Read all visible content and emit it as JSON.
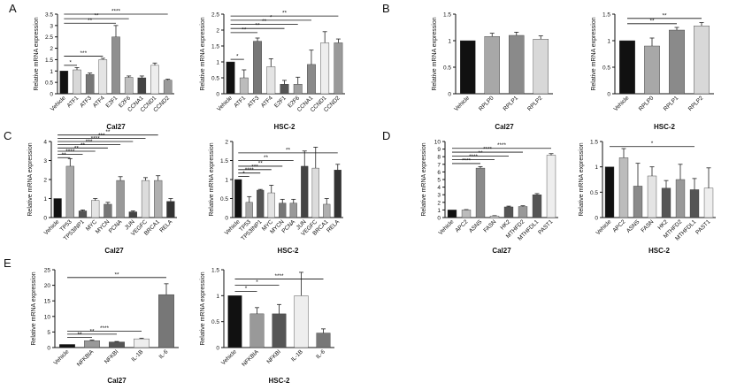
{
  "chart_data": [
    {
      "panel": "A",
      "title": "Cal27",
      "type": "bar",
      "ylabel": "Relative mRNA expression",
      "ylim": [
        0,
        3.5
      ],
      "yticks": [
        0,
        0.5,
        1,
        1.5,
        2,
        2.5,
        3,
        3.5
      ],
      "categories": [
        "Vehicle",
        "ATF1",
        "ATF3",
        "ATF4",
        "E2F1",
        "E2F6",
        "CCNA1",
        "CCND1",
        "CCND2"
      ],
      "values": [
        1.0,
        1.05,
        0.85,
        1.5,
        2.5,
        0.72,
        0.7,
        1.25,
        0.6
      ],
      "errors": [
        0,
        0.1,
        0.06,
        0.06,
        0.5,
        0.06,
        0.08,
        0.1,
        0.04
      ],
      "colors": [
        "#111111",
        "#d8d8d8",
        "#777777",
        "#e4e4e4",
        "#8f8f8f",
        "#bfbfbf",
        "#444444",
        "#eeeeee",
        "#9a9a9a"
      ],
      "significance": [
        {
          "from": 0,
          "to": 1,
          "label": "*",
          "y": 1.25
        },
        {
          "from": 0,
          "to": 3,
          "label": "***",
          "y": 1.65
        },
        {
          "from": 0,
          "to": 4,
          "label": "**",
          "y": 3.1
        },
        {
          "from": 0,
          "to": 5,
          "label": "**",
          "y": 3.3
        },
        {
          "from": 0,
          "to": 8,
          "label": "****",
          "y": 3.5
        }
      ]
    },
    {
      "panel": "A2",
      "title": "HSC-2",
      "type": "bar",
      "ylabel": "Relative mRNA expression",
      "ylim": [
        0,
        2.5
      ],
      "yticks": [
        0,
        0.5,
        1,
        1.5,
        2,
        2.5
      ],
      "categories": [
        "Vehicle",
        "ATF1",
        "ATF3",
        "ATF4",
        "E2F1",
        "E2F6",
        "CCNA1",
        "CCND1",
        "CCND2"
      ],
      "values": [
        1.0,
        0.5,
        1.65,
        0.85,
        0.3,
        0.3,
        0.92,
        1.6,
        1.6
      ],
      "errors": [
        0,
        0.25,
        0.1,
        0.25,
        0.12,
        0.22,
        0.45,
        0.35,
        0.12
      ],
      "colors": [
        "#111111",
        "#bcbcbc",
        "#777777",
        "#e4e4e4",
        "#555555",
        "#a0a0a0",
        "#8a8a8a",
        "#eeeeee",
        "#9a9a9a"
      ],
      "significance": [
        {
          "from": 0,
          "to": 1,
          "label": "*",
          "y": 1.08
        },
        {
          "from": 0,
          "to": 2,
          "label": "**",
          "y": 1.92
        },
        {
          "from": 0,
          "to": 4,
          "label": "**",
          "y": 2.05
        },
        {
          "from": 0,
          "to": 5,
          "label": "**",
          "y": 2.18
        },
        {
          "from": 0,
          "to": 6,
          "label": "*",
          "y": 2.31
        },
        {
          "from": 0,
          "to": 8,
          "label": "**",
          "y": 2.44
        }
      ]
    },
    {
      "panel": "B",
      "title": "Cal27",
      "type": "bar",
      "ylabel": "Relative mRNA expression",
      "ylim": [
        0,
        1.5
      ],
      "yticks": [
        0,
        0.5,
        1,
        1.5
      ],
      "categories": [
        "Vehicle",
        "RPLP0",
        "RPLP1",
        "RPLP2"
      ],
      "values": [
        1.0,
        1.08,
        1.1,
        1.03
      ],
      "errors": [
        0,
        0.06,
        0.06,
        0.06
      ],
      "colors": [
        "#111111",
        "#a8a8a8",
        "#8a8a8a",
        "#d8d8d8"
      ],
      "significance": []
    },
    {
      "panel": "B2",
      "title": "HSC-2",
      "type": "bar",
      "ylabel": "Relative mRNA expression",
      "ylim": [
        0,
        1.5
      ],
      "yticks": [
        0,
        0.5,
        1,
        1.5
      ],
      "categories": [
        "Vehicle",
        "RPLP0",
        "RPLP1",
        "RPLP2"
      ],
      "values": [
        1.0,
        0.9,
        1.2,
        1.28
      ],
      "errors": [
        0,
        0.15,
        0.05,
        0.06
      ],
      "colors": [
        "#111111",
        "#a8a8a8",
        "#8a8a8a",
        "#d8d8d8"
      ],
      "significance": [
        {
          "from": 0,
          "to": 2,
          "label": "**",
          "y": 1.32
        },
        {
          "from": 0,
          "to": 3,
          "label": "**",
          "y": 1.42
        }
      ]
    },
    {
      "panel": "C",
      "title": "Cal27",
      "type": "bar",
      "ylabel": "Relative mRNA expression",
      "ylim": [
        0,
        4
      ],
      "yticks": [
        0,
        1,
        2,
        3,
        4
      ],
      "categories": [
        "Vehicle",
        "TP53",
        "TP53INP1",
        "MYC",
        "MYCN",
        "PCNA",
        "JUN",
        "VEGFC",
        "BRCA1",
        "RELA"
      ],
      "values": [
        1.0,
        2.7,
        0.35,
        0.9,
        0.7,
        1.95,
        0.3,
        1.95,
        1.95,
        0.85
      ],
      "errors": [
        0,
        0.4,
        0.05,
        0.1,
        0.1,
        0.2,
        0.05,
        0.15,
        0.25,
        0.15
      ],
      "colors": [
        "#111111",
        "#a8a8a8",
        "#555555",
        "#e4e4e4",
        "#777777",
        "#999999",
        "#444444",
        "#dcdcdc",
        "#b0b0b0",
        "#333333"
      ],
      "significance": [
        {
          "from": 0,
          "to": 1,
          "label": "**",
          "y": 3.15
        },
        {
          "from": 0,
          "to": 2,
          "label": "****",
          "y": 3.32
        },
        {
          "from": 0,
          "to": 3,
          "label": "**",
          "y": 3.49
        },
        {
          "from": 0,
          "to": 4,
          "label": "**",
          "y": 3.66
        },
        {
          "from": 0,
          "to": 5,
          "label": "***",
          "y": 3.83
        },
        {
          "from": 0,
          "to": 6,
          "label": "****",
          "y": 4.0
        },
        {
          "from": 0,
          "to": 7,
          "label": "***",
          "y": 4.17
        },
        {
          "from": 0,
          "to": 8,
          "label": "**",
          "y": 4.34
        }
      ]
    },
    {
      "panel": "C2",
      "title": "HSC-2",
      "type": "bar",
      "ylabel": "Relative mRNA expression",
      "ylim": [
        0,
        2.0
      ],
      "yticks": [
        0,
        0.5,
        1,
        1.5,
        2
      ],
      "categories": [
        "Vehicle",
        "TP53",
        "TP53INP1",
        "MYC",
        "MYCN",
        "PCNA",
        "JUN",
        "VEGFC",
        "BRCA1",
        "RELA"
      ],
      "values": [
        1.0,
        0.4,
        0.72,
        0.65,
        0.38,
        0.38,
        1.35,
        1.3,
        0.35,
        1.25
      ],
      "errors": [
        0,
        0.15,
        0.02,
        0.2,
        0.1,
        0.1,
        0.4,
        0.55,
        0.15,
        0.15
      ],
      "colors": [
        "#111111",
        "#a8a8a8",
        "#555555",
        "#e4e4e4",
        "#777777",
        "#999999",
        "#444444",
        "#dcdcdc",
        "#b0b0b0",
        "#333333"
      ],
      "significance": [
        {
          "from": 0,
          "to": 1,
          "label": "*",
          "y": 1.08
        },
        {
          "from": 0,
          "to": 2,
          "label": "****",
          "y": 1.17
        },
        {
          "from": 0,
          "to": 3,
          "label": "***",
          "y": 1.26
        },
        {
          "from": 0,
          "to": 4,
          "label": "**",
          "y": 1.35
        },
        {
          "from": 0,
          "to": 5,
          "label": "**",
          "y": 1.5
        },
        {
          "from": 0,
          "to": 9,
          "label": "**",
          "y": 1.7
        }
      ]
    },
    {
      "panel": "D",
      "title": "Cal27",
      "type": "bar",
      "ylabel": "Relative mRNA expression",
      "ylim": [
        0,
        10
      ],
      "yticks": [
        0,
        1,
        2,
        3,
        4,
        5,
        6,
        7,
        8,
        9,
        10
      ],
      "categories": [
        "Vehicle",
        "APC2",
        "ASNS",
        "FASN",
        "HK2",
        "MTHFD2",
        "MTHFDL1",
        "PAST1"
      ],
      "values": [
        1.0,
        1.0,
        6.5,
        0.2,
        1.4,
        1.45,
        3.0,
        8.2
      ],
      "errors": [
        0,
        0.05,
        0.2,
        0.05,
        0.1,
        0.1,
        0.15,
        0.2
      ],
      "colors": [
        "#111111",
        "#bcbcbc",
        "#8a8a8a",
        "#e4e4e4",
        "#555555",
        "#999999",
        "#555555",
        "#eeeeee"
      ],
      "significance": [
        {
          "from": 0,
          "to": 2,
          "label": "****",
          "y": 7.1
        },
        {
          "from": 0,
          "to": 3,
          "label": "****",
          "y": 7.6
        },
        {
          "from": 0,
          "to": 4,
          "label": "**",
          "y": 8.1
        },
        {
          "from": 0,
          "to": 5,
          "label": "****",
          "y": 8.6
        },
        {
          "from": 0,
          "to": 7,
          "label": "****",
          "y": 9.1
        }
      ]
    },
    {
      "panel": "D2",
      "title": "HSC-2",
      "type": "bar",
      "ylabel": "Relative mRNA expression",
      "ylim": [
        0,
        1.5
      ],
      "yticks": [
        0,
        0.5,
        1,
        1.5
      ],
      "categories": [
        "Vehicle",
        "APC2",
        "ASNS",
        "FASN",
        "HK2",
        "MTHFD2",
        "MTHFDL1",
        "PAST1"
      ],
      "values": [
        1.0,
        1.18,
        0.62,
        0.82,
        0.58,
        0.75,
        0.55,
        0.58
      ],
      "errors": [
        0,
        0.18,
        0.45,
        0.18,
        0.15,
        0.3,
        0.22,
        0.4
      ],
      "colors": [
        "#111111",
        "#bcbcbc",
        "#8a8a8a",
        "#e4e4e4",
        "#555555",
        "#999999",
        "#555555",
        "#eeeeee"
      ],
      "significance": [
        {
          "from": 0,
          "to": 6,
          "label": "*",
          "y": 1.4
        }
      ]
    },
    {
      "panel": "E",
      "title": "Cal27",
      "type": "bar",
      "ylabel": "Relative mRNA expression",
      "ylim": [
        0,
        25
      ],
      "yticks": [
        0,
        5,
        10,
        15,
        20,
        25
      ],
      "categories": [
        "Vehicle",
        "NFKBIA",
        "NFKBI",
        "IL-1B",
        "IL-6"
      ],
      "values": [
        1.0,
        2.2,
        1.8,
        2.8,
        17.0
      ],
      "errors": [
        0,
        0.2,
        0.15,
        0.2,
        3.5
      ],
      "colors": [
        "#111111",
        "#999999",
        "#555555",
        "#eeeeee",
        "#777777"
      ],
      "significance": [
        {
          "from": 0,
          "to": 1,
          "label": "**",
          "y": 3.3
        },
        {
          "from": 0,
          "to": 2,
          "label": "**",
          "y": 4.3
        },
        {
          "from": 0,
          "to": 3,
          "label": "****",
          "y": 5.3
        },
        {
          "from": 0,
          "to": 4,
          "label": "**",
          "y": 22.5
        }
      ]
    },
    {
      "panel": "E2",
      "title": "HSC-2",
      "type": "bar",
      "ylabel": "Relative mRNA expression",
      "ylim": [
        0,
        1.5
      ],
      "yticks": [
        0,
        0.5,
        1,
        1.5
      ],
      "categories": [
        "Vehicle",
        "NFKBIA",
        "NFKBI",
        "IL-1B",
        "IL-6"
      ],
      "values": [
        1.0,
        0.65,
        0.65,
        1.0,
        0.28
      ],
      "errors": [
        0,
        0.12,
        0.18,
        0.45,
        0.08
      ],
      "colors": [
        "#111111",
        "#999999",
        "#555555",
        "#eeeeee",
        "#777777"
      ],
      "significance": [
        {
          "from": 0,
          "to": 1,
          "label": "*",
          "y": 1.08
        },
        {
          "from": 0,
          "to": 2,
          "label": "*",
          "y": 1.2
        },
        {
          "from": 0,
          "to": 4,
          "label": "****",
          "y": 1.32
        }
      ]
    }
  ],
  "panel_labels": [
    "A",
    "B",
    "C",
    "D",
    "E"
  ]
}
